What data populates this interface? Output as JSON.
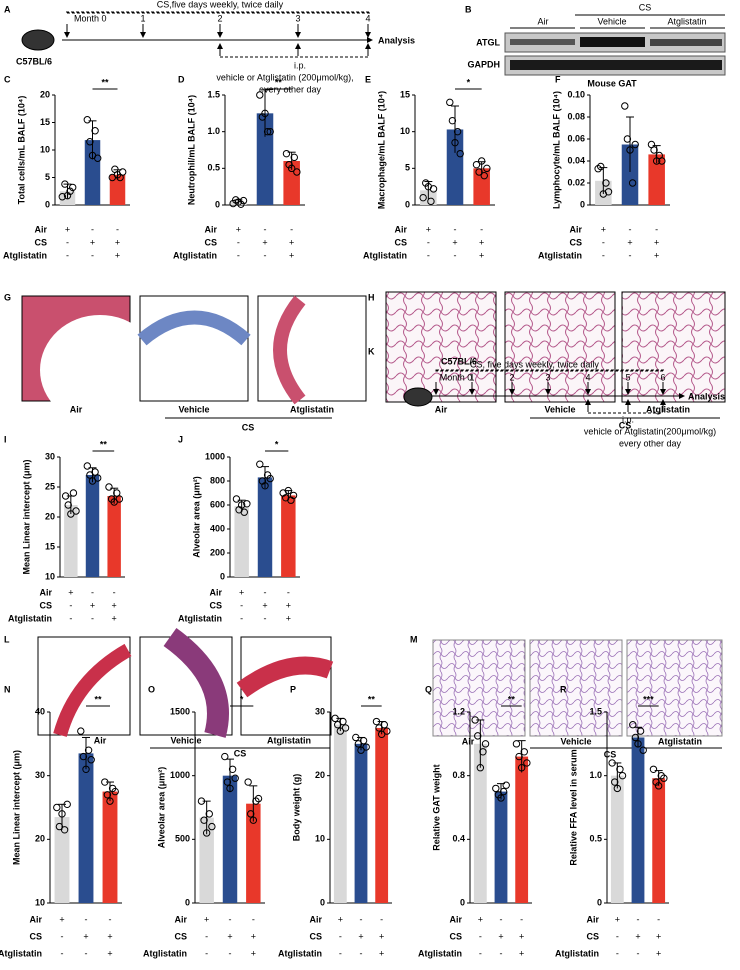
{
  "panels": {
    "a": {
      "letter": "A",
      "strain": "C57BL/6",
      "months": [
        "Month 0",
        "1",
        "2",
        "3",
        "4"
      ],
      "end": "Analysis",
      "exposure": "CS,five days weekly, twice daily",
      "route": "i.p.",
      "dose": "vehicle or Atglistatin (200μmol/kg),",
      "schedule": "every other day"
    },
    "b": {
      "letter": "B",
      "group": "CS",
      "lanes": [
        "Air",
        "Vehicle",
        "Atglistatin"
      ],
      "rows": [
        "ATGL",
        "GAPDH"
      ],
      "tissue": "Mouse GAT"
    },
    "g": {
      "letter": "G",
      "labels": [
        "Air",
        "Vehicle",
        "Atglistatin"
      ],
      "group": "CS"
    },
    "h": {
      "letter": "H",
      "labels": [
        "Air",
        "Vehicle",
        "Atglistatin"
      ],
      "group": "CS"
    },
    "k": {
      "letter": "K",
      "strain": "C57BL/6",
      "months": [
        "Month 0",
        "1",
        "2",
        "3",
        "4",
        "5",
        "6"
      ],
      "end": "Analysis",
      "exposure": "CS, five days weekly, twice daily",
      "route": "i.p.",
      "dose": "vehicle or Atglistatin(200μmol/kg)",
      "schedule": "every other day"
    },
    "l": {
      "letter": "L",
      "labels": [
        "Air",
        "Vehicle",
        "Atglistatin"
      ],
      "group": "CS"
    },
    "m": {
      "letter": "M",
      "labels": [
        "Air",
        "Vehicle",
        "Atglistatin"
      ],
      "group": "CS"
    }
  },
  "chart_data": [
    {
      "type": "bar",
      "panel": "C",
      "y_label": "Total cells/mL BALF (10⁴)",
      "ylim": [
        0,
        20
      ],
      "yticks": [
        0,
        5,
        10,
        15,
        20
      ],
      "colors": [
        "#d9d9d9",
        "#2a4d8f",
        "#e8382a"
      ],
      "values": [
        2.5,
        11.8,
        5.5
      ],
      "errors": [
        1.3,
        3.5,
        0.9
      ],
      "points": [
        [
          1.5,
          3.8,
          1.7,
          2.5,
          3.2
        ],
        [
          15.5,
          11.5,
          9.0,
          13.5,
          8.5
        ],
        [
          5.0,
          6.5,
          5.5,
          5.0,
          6.0
        ]
      ],
      "significance": "**",
      "conditions": [
        {
          "label": "Air",
          "signs": [
            "+",
            "-",
            "-"
          ]
        },
        {
          "label": "CS",
          "signs": [
            "-",
            "+",
            "+"
          ]
        },
        {
          "label": "Atglistatin",
          "signs": [
            "-",
            "-",
            "+"
          ]
        }
      ]
    },
    {
      "type": "bar",
      "panel": "D",
      "y_label": "Neutrophil/mL BALF (10⁴)",
      "ylim": [
        0,
        1.5
      ],
      "yticks": [
        0,
        0.5,
        {
          "value": 1,
          "label": "1.0"
        },
        1.5
      ],
      "colors": [
        "#d9d9d9",
        "#2a4d8f",
        "#e8382a"
      ],
      "values": [
        0.04,
        1.25,
        0.6
      ],
      "errors": [
        0.03,
        0.32,
        0.12
      ],
      "points": [
        [
          0.02,
          0.07,
          0.04,
          0.01,
          0.06
        ],
        [
          1.5,
          1.2,
          1.25,
          1.0,
          1.0
        ],
        [
          0.7,
          0.55,
          0.5,
          0.65,
          0.45
        ]
      ],
      "significance": "**",
      "conditions": [
        {
          "label": "Air",
          "signs": [
            "+",
            "-",
            "-"
          ]
        },
        {
          "label": "CS",
          "signs": [
            "-",
            "+",
            "+"
          ]
        },
        {
          "label": "Atglistatin",
          "signs": [
            "-",
            "-",
            "+"
          ]
        }
      ]
    },
    {
      "type": "bar",
      "panel": "E",
      "y_label": "Macrophage/mL BALF (10⁴)",
      "ylim": [
        0,
        15
      ],
      "yticks": [
        0,
        5,
        10,
        15
      ],
      "colors": [
        "#d9d9d9",
        "#2a4d8f",
        "#e8382a"
      ],
      "values": [
        2,
        10.3,
        5
      ],
      "errors": [
        1.2,
        3.2,
        0.9
      ],
      "points": [
        [
          1,
          3,
          2.5,
          0.5,
          2.2
        ],
        [
          14,
          11.5,
          8.5,
          10,
          7
        ],
        [
          5.5,
          4.5,
          6,
          4,
          5
        ]
      ],
      "significance": "*",
      "conditions": [
        {
          "label": "Air",
          "signs": [
            "+",
            "-",
            "-"
          ]
        },
        {
          "label": "CS",
          "signs": [
            "-",
            "+",
            "+"
          ]
        },
        {
          "label": "Atglistatin",
          "signs": [
            "-",
            "-",
            "+"
          ]
        }
      ]
    },
    {
      "type": "bar",
      "panel": "F",
      "y_label": "Lymphocyte/mL BALF (10⁴)",
      "ylim": [
        0,
        0.1
      ],
      "yticks": [
        0,
        0.02,
        0.04,
        0.06,
        0.08,
        {
          "value": 0.1,
          "label": "0.10"
        }
      ],
      "colors": [
        "#d9d9d9",
        "#2a4d8f",
        "#e8382a"
      ],
      "values": [
        0.022,
        0.055,
        0.046
      ],
      "errors": [
        0.012,
        0.025,
        0.008
      ],
      "points": [
        [
          0.033,
          0.035,
          0.01,
          0.02,
          0.012
        ],
        [
          0.09,
          0.06,
          0.05,
          0.02,
          0.055
        ],
        [
          0.055,
          0.05,
          0.04,
          0.045,
          0.04
        ]
      ],
      "conditions": [
        {
          "label": "Air",
          "signs": [
            "+",
            "-",
            "-"
          ]
        },
        {
          "label": "CS",
          "signs": [
            "-",
            "+",
            "+"
          ]
        },
        {
          "label": "Atglistatin",
          "signs": [
            "-",
            "-",
            "+"
          ]
        }
      ]
    },
    {
      "type": "bar",
      "panel": "I",
      "y_label": "Mean Linear intercept (μm)",
      "ylim": [
        10,
        30
      ],
      "yticks": [
        10,
        15,
        20,
        25,
        30
      ],
      "colors": [
        "#d9d9d9",
        "#2a4d8f",
        "#e8382a"
      ],
      "values": [
        22,
        27,
        23.5
      ],
      "errors": [
        1.5,
        1.2,
        1.3
      ],
      "points": [
        [
          23.5,
          22,
          20.5,
          24,
          21
        ],
        [
          28.5,
          27,
          26,
          27.5,
          26.5
        ],
        [
          25,
          23,
          22.5,
          24,
          23
        ]
      ],
      "significance": "**",
      "conditions": [
        {
          "label": "Air",
          "signs": [
            "+",
            "-",
            "-"
          ]
        },
        {
          "label": "CS",
          "signs": [
            "-",
            "+",
            "+"
          ]
        },
        {
          "label": "Atglistatin",
          "signs": [
            "-",
            "-",
            "+"
          ]
        }
      ]
    },
    {
      "type": "bar",
      "panel": "J",
      "y_label": "Alveolar area (μm²)",
      "ylim": [
        0,
        1000
      ],
      "yticks": [
        0,
        200,
        400,
        600,
        800,
        1000
      ],
      "colors": [
        "#d9d9d9",
        "#2a4d8f",
        "#e8382a"
      ],
      "values": [
        590,
        830,
        680
      ],
      "errors": [
        50,
        90,
        40
      ],
      "points": [
        [
          650,
          560,
          600,
          540,
          610
        ],
        [
          940,
          800,
          760,
          850,
          820
        ],
        [
          700,
          660,
          720,
          640,
          680
        ]
      ],
      "significance": "*",
      "conditions": [
        {
          "label": "Air",
          "signs": [
            "+",
            "-",
            "-"
          ]
        },
        {
          "label": "CS",
          "signs": [
            "-",
            "+",
            "+"
          ]
        },
        {
          "label": "Atglistatin",
          "signs": [
            "-",
            "-",
            "+"
          ]
        }
      ]
    },
    {
      "type": "bar",
      "panel": "N",
      "y_label": "Mean Linear intercept (μm)",
      "ylim": [
        10,
        40
      ],
      "yticks": [
        10,
        20,
        30,
        40
      ],
      "colors": [
        "#d9d9d9",
        "#2a4d8f",
        "#e8382a"
      ],
      "values": [
        23.5,
        33.5,
        27.5
      ],
      "errors": [
        2,
        2.5,
        1.5
      ],
      "points": [
        [
          25,
          22,
          24,
          21.5,
          25.5
        ],
        [
          37,
          33,
          31,
          34,
          32.5
        ],
        [
          29,
          27,
          26,
          28,
          27.5
        ]
      ],
      "significance": "**",
      "conditions": [
        {
          "label": "Air",
          "signs": [
            "+",
            "-",
            "-"
          ]
        },
        {
          "label": "CS",
          "signs": [
            "-",
            "+",
            "+"
          ]
        },
        {
          "label": "Atglistatin",
          "signs": [
            "-",
            "-",
            "+"
          ]
        }
      ]
    },
    {
      "type": "bar",
      "panel": "O",
      "y_label": "Alveolar area (μm²)",
      "ylim": [
        0,
        1500
      ],
      "yticks": [
        0,
        500,
        1000,
        1500
      ],
      "colors": [
        "#d9d9d9",
        "#2a4d8f",
        "#e8382a"
      ],
      "values": [
        670,
        1000,
        780
      ],
      "errors": [
        130,
        130,
        140
      ],
      "points": [
        [
          800,
          650,
          550,
          700,
          600
        ],
        [
          1150,
          950,
          900,
          1050,
          980
        ],
        [
          950,
          700,
          650,
          800,
          820
        ]
      ],
      "significance": "*",
      "conditions": [
        {
          "label": "Air",
          "signs": [
            "+",
            "-",
            "-"
          ]
        },
        {
          "label": "CS",
          "signs": [
            "-",
            "+",
            "+"
          ]
        },
        {
          "label": "Atglistatin",
          "signs": [
            "-",
            "-",
            "+"
          ]
        }
      ]
    },
    {
      "type": "bar",
      "panel": "P",
      "y_label": "Body weight (g)",
      "ylim": [
        0,
        30
      ],
      "yticks": [
        0,
        10,
        20,
        30
      ],
      "colors": [
        "#d9d9d9",
        "#2a4d8f",
        "#e8382a"
      ],
      "values": [
        28,
        25,
        27.5
      ],
      "errors": [
        1,
        1,
        1
      ],
      "points": [
        [
          29,
          28,
          27,
          28.5,
          27.5
        ],
        [
          26,
          25,
          24,
          25.5,
          24.5
        ],
        [
          28.5,
          27.5,
          26.5,
          28,
          27
        ]
      ],
      "significance": "**",
      "conditions": [
        {
          "label": "Air",
          "signs": [
            "+",
            "-",
            "-"
          ]
        },
        {
          "label": "CS",
          "signs": [
            "-",
            "+",
            "+"
          ]
        },
        {
          "label": "Atglistatin",
          "signs": [
            "-",
            "-",
            "+"
          ]
        }
      ]
    },
    {
      "type": "bar",
      "panel": "Q",
      "y_label": "Relative GAT weight",
      "ylim": [
        0,
        1.2
      ],
      "yticks": [
        0,
        0.4,
        0.8,
        1.2
      ],
      "colors": [
        "#d9d9d9",
        "#2a4d8f",
        "#e8382a"
      ],
      "values": [
        1.0,
        0.7,
        0.92
      ],
      "errors": [
        0.15,
        0.05,
        0.1
      ],
      "points": [
        [
          1.15,
          1.05,
          0.85,
          0.95,
          1.0
        ],
        [
          0.72,
          0.68,
          0.66,
          0.7,
          0.74
        ],
        [
          1.0,
          0.92,
          0.85,
          0.95,
          0.88
        ]
      ],
      "significance": "**",
      "conditions": [
        {
          "label": "Air",
          "signs": [
            "+",
            "-",
            "-"
          ]
        },
        {
          "label": "CS",
          "signs": [
            "-",
            "+",
            "+"
          ]
        },
        {
          "label": "Atglistatin",
          "signs": [
            "-",
            "-",
            "+"
          ]
        }
      ]
    },
    {
      "type": "bar",
      "panel": "R",
      "y_label": "Relative FFA level in serum",
      "ylim": [
        0,
        1.5
      ],
      "yticks": [
        0,
        0.5,
        {
          "value": 1,
          "label": "1.0"
        },
        1.5
      ],
      "colors": [
        "#d9d9d9",
        "#2a4d8f",
        "#e8382a"
      ],
      "values": [
        1.0,
        1.3,
        0.98
      ],
      "errors": [
        0.1,
        0.08,
        0.06
      ],
      "points": [
        [
          1.1,
          0.95,
          0.9,
          1.05,
          1.0
        ],
        [
          1.4,
          1.3,
          1.25,
          1.35,
          1.2
        ],
        [
          1.05,
          0.95,
          0.92,
          1.0,
          0.98
        ]
      ],
      "significance": "***",
      "conditions": [
        {
          "label": "Air",
          "signs": [
            "+",
            "-",
            "-"
          ]
        },
        {
          "label": "CS",
          "signs": [
            "-",
            "+",
            "+"
          ]
        },
        {
          "label": "Atglistatin",
          "signs": [
            "-",
            "-",
            "+"
          ]
        }
      ]
    }
  ]
}
